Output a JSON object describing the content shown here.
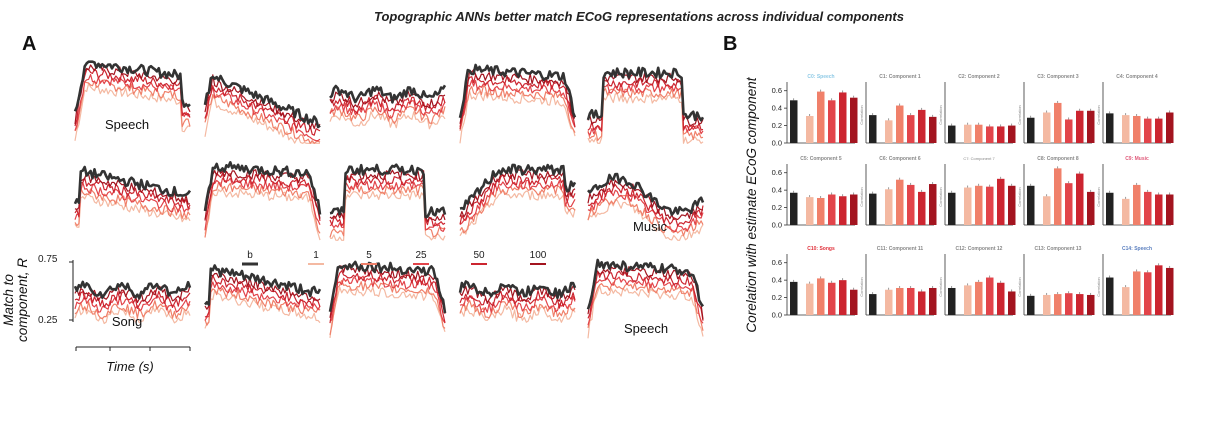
{
  "figure": {
    "title": "Topographic ANNs better match ECoG representations across individual components"
  },
  "panel_a": {
    "letter": "A",
    "y_axis_label_line1": "Match to",
    "y_axis_label_line2": "component, R",
    "y_ticks": [
      "0.75",
      "0.25"
    ],
    "x_axis_label": "Time (s)",
    "legend": {
      "items": [
        {
          "label": "b",
          "color": "#333333"
        },
        {
          "label": "1",
          "color": "#f4b9a2"
        },
        {
          "label": "5",
          "color": "#f0806a"
        },
        {
          "label": "25",
          "color": "#e2444a"
        },
        {
          "label": "50",
          "color": "#cc2530"
        },
        {
          "label": "100",
          "color": "#a3141f"
        }
      ]
    },
    "subplot_labels": [
      {
        "label": "Speech"
      },
      {
        "label": "Music"
      },
      {
        "label": "Song"
      },
      {
        "label": "Speech"
      }
    ]
  },
  "panel_b": {
    "letter": "B",
    "y_axis_label": "Corelation with estimate ECoG component",
    "colors": {
      "b": "#222222",
      "1": "#f4b9a2",
      "5": "#f0806a",
      "25": "#e2444a",
      "50": "#cc2530",
      "100": "#a3141f"
    },
    "y_ticks": [
      "0.6",
      "0.4",
      "0.2",
      "0.0"
    ],
    "small_ylabel": "Correlation"
  },
  "chart_data": [
    {
      "type": "line",
      "title": "Topographic ANNs better match ECoG representations across individual components",
      "xlabel": "Time (s)",
      "ylabel": "Match to component, R",
      "ylim": [
        0.25,
        0.75
      ],
      "legend_placement": "between rows 2 and 3",
      "series_names": [
        "b",
        "1",
        "5",
        "25",
        "50",
        "100"
      ],
      "note_values": "approximate shapes of time-courses per component subplot (15 subplots, 3 rows x 5 cols)"
    },
    {
      "type": "bar",
      "categories": [
        "b",
        "1",
        "5",
        "25",
        "50",
        "100"
      ],
      "ylim": [
        0,
        0.7
      ],
      "ylabel": "Corelation with estimate ECoG component",
      "subplots": [
        {
          "title": "C0: Speech",
          "title_color": "#8ecae6",
          "values": [
            0.49,
            0.31,
            0.59,
            0.49,
            0.58,
            0.52
          ]
        },
        {
          "title": "C1: Component 1",
          "title_color": "#888888",
          "values": [
            0.32,
            0.26,
            0.43,
            0.32,
            0.38,
            0.3
          ]
        },
        {
          "title": "C2: Component 2",
          "title_color": "#888888",
          "values": [
            0.2,
            0.21,
            0.21,
            0.19,
            0.19,
            0.2
          ]
        },
        {
          "title": "C3: Component 3",
          "title_color": "#888888",
          "values": [
            0.29,
            0.35,
            0.46,
            0.27,
            0.37,
            0.37
          ]
        },
        {
          "title": "C4: Component 4",
          "title_color": "#888888",
          "values": [
            0.34,
            0.32,
            0.31,
            0.28,
            0.28,
            0.35
          ]
        },
        {
          "title": "C5: Component 5",
          "title_color": "#888888",
          "values": [
            0.37,
            0.32,
            0.31,
            0.35,
            0.33,
            0.35
          ]
        },
        {
          "title": "C6: Component 6",
          "title_color": "#888888",
          "values": [
            0.36,
            0.41,
            0.52,
            0.46,
            0.38,
            0.47
          ]
        },
        {
          "title": "C7: Component 7",
          "title_color": "#888888",
          "values": [
            0.37,
            0.43,
            0.45,
            0.44,
            0.53,
            0.45
          ]
        },
        {
          "title": "C8: Component 8",
          "title_color": "#888888",
          "values": [
            0.45,
            0.33,
            0.65,
            0.48,
            0.59,
            0.38
          ]
        },
        {
          "title": "C9: Music",
          "title_color": "#e05a7a",
          "values": [
            0.37,
            0.3,
            0.46,
            0.38,
            0.35,
            0.35
          ]
        },
        {
          "title": "C10: Songs",
          "title_color": "#e0303a",
          "values": [
            0.38,
            0.36,
            0.42,
            0.37,
            0.4,
            0.29
          ]
        },
        {
          "title": "C11: Component 11",
          "title_color": "#888888",
          "values": [
            0.24,
            0.29,
            0.31,
            0.31,
            0.27,
            0.31
          ]
        },
        {
          "title": "C12: Component 12",
          "title_color": "#888888",
          "values": [
            0.31,
            0.34,
            0.38,
            0.43,
            0.37,
            0.27
          ]
        },
        {
          "title": "C13: Component 13",
          "title_color": "#888888",
          "values": [
            0.22,
            0.23,
            0.24,
            0.25,
            0.24,
            0.23
          ]
        },
        {
          "title": "C14: Speech",
          "title_color": "#5b7fbf",
          "values": [
            0.43,
            0.32,
            0.5,
            0.49,
            0.57,
            0.54
          ]
        }
      ]
    }
  ]
}
